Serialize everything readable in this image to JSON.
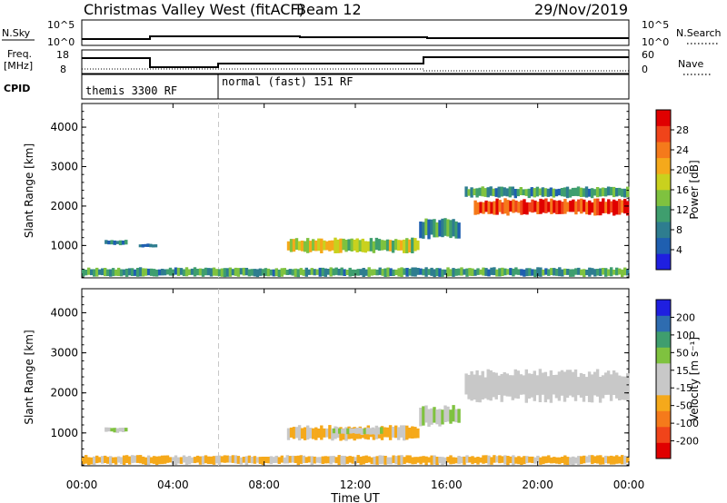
{
  "header": {
    "title": "Christmas Valley West (fitACF)",
    "beam": "Beam 12",
    "date": "29/Nov/2019"
  },
  "status_panel": {
    "noise": {
      "left_label": "N.Sky",
      "right_label": "N.Search",
      "left_ticks": [
        "10^5",
        "10^0"
      ],
      "right_ticks": [
        "10^5",
        "10^0"
      ]
    },
    "freq": {
      "left_label_1": "Freq.",
      "left_label_2": "[MHz]",
      "right_label": "Nave",
      "left_ticks": [
        "18",
        "8"
      ],
      "right_ticks": [
        "60",
        "0"
      ]
    },
    "cpid": {
      "label": "CPID",
      "segments": [
        "themis 3300 RF",
        "normal (fast) 151 RF"
      ]
    }
  },
  "x_axis": {
    "label": "Time UT",
    "ticks": [
      "00:00",
      "04:00",
      "08:00",
      "12:00",
      "16:00",
      "20:00",
      "00:00"
    ]
  },
  "colors": {
    "power": [
      "#1f1fe0",
      "#1f5fb0",
      "#2e7d8f",
      "#3f9e6e",
      "#7fc23f",
      "#c9d11e",
      "#f5a91b",
      "#f57a1b",
      "#f0441a",
      "#e00000"
    ],
    "velocity": [
      "#e00000",
      "#f0441a",
      "#f57a1b",
      "#f5a91b",
      "#c8c8c8",
      "#c8c8c8",
      "#7fc23f",
      "#3f9e6e",
      "#2e6cb0",
      "#1f1fe0"
    ]
  },
  "chart_data": [
    {
      "type": "heatmap",
      "title": "Power",
      "xlabel": "Time UT",
      "ylabel": "Slant Range [km]",
      "xlim": [
        0,
        24
      ],
      "ylim": [
        180,
        4600
      ],
      "y_ticks": [
        "1000",
        "2000",
        "3000",
        "4000"
      ],
      "colorbar": {
        "label": "Power [dB]",
        "ticks": [
          "4",
          "8",
          "12",
          "16",
          "20",
          "24",
          "28"
        ],
        "range": [
          0,
          30
        ]
      },
      "echo_regions": [
        {
          "name": "near-range clutter",
          "t_start": 0.0,
          "t_end": 24.0,
          "range_start": 200,
          "range_end": 450,
          "value": 10
        },
        {
          "name": "early evening patch",
          "t_start": 1.0,
          "t_end": 2.0,
          "range_start": 1000,
          "range_end": 1150,
          "value": 6
        },
        {
          "name": "early evening patch 2",
          "t_start": 2.5,
          "t_end": 3.3,
          "range_start": 950,
          "range_end": 1050,
          "value": 6
        },
        {
          "name": "mid band",
          "t_start": 9.0,
          "t_end": 14.8,
          "range_start": 800,
          "range_end": 1200,
          "value": 16
        },
        {
          "name": "rising echo",
          "t_start": 14.8,
          "t_end": 16.6,
          "range_start": 1150,
          "range_end": 1700,
          "value": 8
        },
        {
          "name": "far band edge",
          "t_start": 16.8,
          "t_end": 24.0,
          "range_start": 2200,
          "range_end": 2500,
          "value": 10
        },
        {
          "name": "far band core",
          "t_start": 17.2,
          "t_end": 24.0,
          "range_start": 1750,
          "range_end": 2200,
          "value": 27
        }
      ]
    },
    {
      "type": "heatmap",
      "title": "Velocity",
      "xlabel": "Time UT",
      "ylabel": "Slant Range [km]",
      "xlim": [
        0,
        24
      ],
      "ylim": [
        180,
        4600
      ],
      "y_ticks": [
        "1000",
        "2000",
        "3000",
        "4000"
      ],
      "colorbar": {
        "label": "Velocity [m s^-1]",
        "ticks": [
          "-200",
          "-100",
          "-50",
          "-15",
          "15",
          "50",
          "100",
          "200"
        ],
        "range": [
          -250,
          250
        ]
      },
      "echo_regions": [
        {
          "name": "near-range clutter",
          "t_start": 0.0,
          "t_end": 24.0,
          "range_start": 200,
          "range_end": 450,
          "value": -60
        },
        {
          "name": "early evening patch",
          "t_start": 1.0,
          "t_end": 2.0,
          "range_start": 1000,
          "range_end": 1150,
          "value": 40
        },
        {
          "name": "mid band",
          "t_start": 9.0,
          "t_end": 14.8,
          "range_start": 800,
          "range_end": 1200,
          "value": -60
        },
        {
          "name": "mid band green",
          "t_start": 11.0,
          "t_end": 13.2,
          "range_start": 950,
          "range_end": 1150,
          "value": 40
        },
        {
          "name": "rising echo",
          "t_start": 14.8,
          "t_end": 16.6,
          "range_start": 1150,
          "range_end": 1700,
          "value": 40
        },
        {
          "name": "far band",
          "t_start": 16.8,
          "t_end": 24.0,
          "range_start": 1750,
          "range_end": 2600,
          "value": 0
        }
      ]
    }
  ]
}
